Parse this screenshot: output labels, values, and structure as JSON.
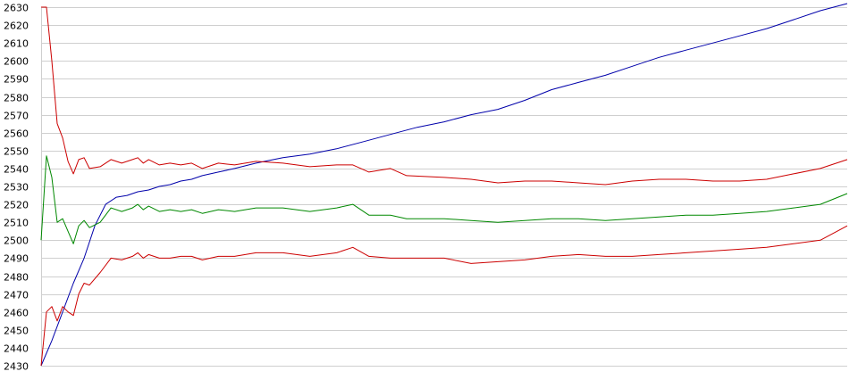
{
  "chart_data": {
    "type": "line",
    "title": "",
    "xlabel": "",
    "ylabel": "",
    "ylim": [
      2430,
      2630
    ],
    "xlim": [
      0,
      300
    ],
    "grid": true,
    "y_ticks": [
      2430,
      2440,
      2450,
      2460,
      2470,
      2480,
      2490,
      2500,
      2510,
      2520,
      2530,
      2540,
      2550,
      2560,
      2570,
      2580,
      2590,
      2600,
      2610,
      2620,
      2630
    ],
    "series": [
      {
        "color": "#0000aa",
        "points": [
          [
            0,
            2430
          ],
          [
            4,
            2444
          ],
          [
            8,
            2460
          ],
          [
            12,
            2476
          ],
          [
            16,
            2490
          ],
          [
            20,
            2508
          ],
          [
            24,
            2520
          ],
          [
            28,
            2524
          ],
          [
            32,
            2525
          ],
          [
            36,
            2527
          ],
          [
            40,
            2528
          ],
          [
            44,
            2530
          ],
          [
            48,
            2531
          ],
          [
            52,
            2533
          ],
          [
            56,
            2534
          ],
          [
            60,
            2536
          ],
          [
            66,
            2538
          ],
          [
            72,
            2540
          ],
          [
            80,
            2543
          ],
          [
            90,
            2546
          ],
          [
            100,
            2548
          ],
          [
            110,
            2551
          ],
          [
            120,
            2555
          ],
          [
            130,
            2559
          ],
          [
            140,
            2563
          ],
          [
            150,
            2566
          ],
          [
            160,
            2570
          ],
          [
            170,
            2573
          ],
          [
            180,
            2578
          ],
          [
            190,
            2584
          ],
          [
            200,
            2588
          ],
          [
            210,
            2592
          ],
          [
            220,
            2597
          ],
          [
            230,
            2602
          ],
          [
            240,
            2606
          ],
          [
            250,
            2610
          ],
          [
            260,
            2614
          ],
          [
            270,
            2618
          ],
          [
            280,
            2623
          ],
          [
            290,
            2628
          ],
          [
            300,
            2632
          ]
        ]
      },
      {
        "color": "#cc0000",
        "points": [
          [
            0,
            2630
          ],
          [
            2,
            2630
          ],
          [
            4,
            2600
          ],
          [
            6,
            2565
          ],
          [
            8,
            2557
          ],
          [
            10,
            2544
          ],
          [
            12,
            2537
          ],
          [
            14,
            2545
          ],
          [
            16,
            2546
          ],
          [
            18,
            2540
          ],
          [
            22,
            2541
          ],
          [
            26,
            2545
          ],
          [
            30,
            2543
          ],
          [
            34,
            2545
          ],
          [
            36,
            2546
          ],
          [
            38,
            2543
          ],
          [
            40,
            2545
          ],
          [
            44,
            2542
          ],
          [
            48,
            2543
          ],
          [
            52,
            2542
          ],
          [
            56,
            2543
          ],
          [
            60,
            2540
          ],
          [
            66,
            2543
          ],
          [
            72,
            2542
          ],
          [
            80,
            2544
          ],
          [
            90,
            2543
          ],
          [
            100,
            2541
          ],
          [
            110,
            2542
          ],
          [
            116,
            2542
          ],
          [
            122,
            2538
          ],
          [
            130,
            2540
          ],
          [
            136,
            2536
          ],
          [
            150,
            2535
          ],
          [
            160,
            2534
          ],
          [
            170,
            2532
          ],
          [
            180,
            2533
          ],
          [
            190,
            2533
          ],
          [
            200,
            2532
          ],
          [
            210,
            2531
          ],
          [
            220,
            2533
          ],
          [
            230,
            2534
          ],
          [
            240,
            2534
          ],
          [
            250,
            2533
          ],
          [
            260,
            2533
          ],
          [
            270,
            2534
          ],
          [
            280,
            2537
          ],
          [
            290,
            2540
          ],
          [
            300,
            2545
          ]
        ]
      },
      {
        "color": "#008800",
        "points": [
          [
            0,
            2500
          ],
          [
            2,
            2547
          ],
          [
            4,
            2535
          ],
          [
            6,
            2510
          ],
          [
            8,
            2512
          ],
          [
            10,
            2505
          ],
          [
            12,
            2498
          ],
          [
            14,
            2508
          ],
          [
            16,
            2511
          ],
          [
            18,
            2507
          ],
          [
            22,
            2510
          ],
          [
            26,
            2518
          ],
          [
            30,
            2516
          ],
          [
            34,
            2518
          ],
          [
            36,
            2520
          ],
          [
            38,
            2517
          ],
          [
            40,
            2519
          ],
          [
            44,
            2516
          ],
          [
            48,
            2517
          ],
          [
            52,
            2516
          ],
          [
            56,
            2517
          ],
          [
            60,
            2515
          ],
          [
            66,
            2517
          ],
          [
            72,
            2516
          ],
          [
            80,
            2518
          ],
          [
            90,
            2518
          ],
          [
            100,
            2516
          ],
          [
            110,
            2518
          ],
          [
            116,
            2520
          ],
          [
            122,
            2514
          ],
          [
            130,
            2514
          ],
          [
            136,
            2512
          ],
          [
            150,
            2512
          ],
          [
            160,
            2511
          ],
          [
            170,
            2510
          ],
          [
            180,
            2511
          ],
          [
            190,
            2512
          ],
          [
            200,
            2512
          ],
          [
            210,
            2511
          ],
          [
            220,
            2512
          ],
          [
            230,
            2513
          ],
          [
            240,
            2514
          ],
          [
            250,
            2514
          ],
          [
            260,
            2515
          ],
          [
            270,
            2516
          ],
          [
            280,
            2518
          ],
          [
            290,
            2520
          ],
          [
            300,
            2526
          ]
        ]
      },
      {
        "color": "#cc0000",
        "points": [
          [
            0,
            2430
          ],
          [
            2,
            2460
          ],
          [
            4,
            2463
          ],
          [
            6,
            2455
          ],
          [
            8,
            2463
          ],
          [
            10,
            2460
          ],
          [
            12,
            2458
          ],
          [
            14,
            2470
          ],
          [
            16,
            2476
          ],
          [
            18,
            2475
          ],
          [
            22,
            2482
          ],
          [
            26,
            2490
          ],
          [
            30,
            2489
          ],
          [
            34,
            2491
          ],
          [
            36,
            2493
          ],
          [
            38,
            2490
          ],
          [
            40,
            2492
          ],
          [
            44,
            2490
          ],
          [
            48,
            2490
          ],
          [
            52,
            2491
          ],
          [
            56,
            2491
          ],
          [
            60,
            2489
          ],
          [
            66,
            2491
          ],
          [
            72,
            2491
          ],
          [
            80,
            2493
          ],
          [
            90,
            2493
          ],
          [
            100,
            2491
          ],
          [
            110,
            2493
          ],
          [
            116,
            2496
          ],
          [
            122,
            2491
          ],
          [
            130,
            2490
          ],
          [
            136,
            2490
          ],
          [
            150,
            2490
          ],
          [
            160,
            2487
          ],
          [
            170,
            2488
          ],
          [
            180,
            2489
          ],
          [
            190,
            2491
          ],
          [
            200,
            2492
          ],
          [
            210,
            2491
          ],
          [
            220,
            2491
          ],
          [
            230,
            2492
          ],
          [
            240,
            2493
          ],
          [
            250,
            2494
          ],
          [
            260,
            2495
          ],
          [
            270,
            2496
          ],
          [
            280,
            2498
          ],
          [
            290,
            2500
          ],
          [
            300,
            2508
          ]
        ]
      }
    ]
  }
}
